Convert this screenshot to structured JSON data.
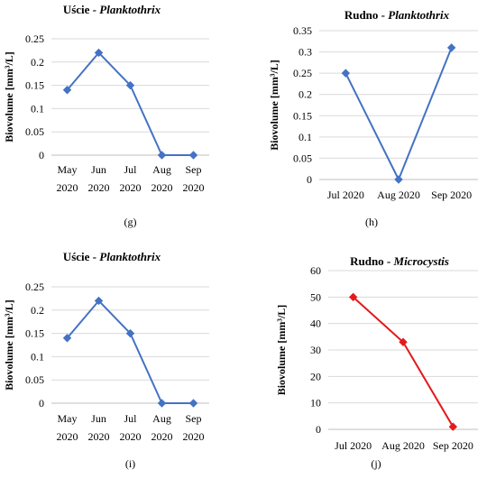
{
  "chart_data": [
    {
      "panel": "g",
      "type": "line",
      "title_site": "Uście",
      "title_sep": " - ",
      "title_genus": "Planktothrix",
      "ylabel": "Biovolume  [mm³/L]",
      "caption": "(g)",
      "categories": [
        [
          "May",
          "2020"
        ],
        [
          "Jun",
          "2020"
        ],
        [
          "Jul",
          "2020"
        ],
        [
          "Aug",
          "2020"
        ],
        [
          "Sep",
          "2020"
        ]
      ],
      "values": [
        0.14,
        0.22,
        0.15,
        0,
        0
      ],
      "yticks": [
        "0",
        "0.05",
        "0.1",
        "0.15",
        "0.2",
        "0.25"
      ],
      "ylim": [
        0,
        0.25
      ],
      "color": "#4472c4",
      "grid": true
    },
    {
      "panel": "h",
      "type": "line",
      "title_site": "Rudno",
      "title_sep": " - ",
      "title_genus": "Planktothrix",
      "ylabel": "Biovolume  [mm³/L]",
      "caption": "(h)",
      "categories": [
        [
          "Jul 2020"
        ],
        [
          "Aug 2020"
        ],
        [
          "Sep 2020"
        ]
      ],
      "values": [
        0.25,
        0,
        0.31
      ],
      "yticks": [
        "0",
        "0.05",
        "0.1",
        "0.15",
        "0.2",
        "0.25",
        "0.3",
        "0.35"
      ],
      "ylim": [
        0,
        0.35
      ],
      "color": "#4472c4",
      "grid": true
    },
    {
      "panel": "i",
      "type": "line",
      "title_site": "Uście",
      "title_sep": " - ",
      "title_genus": "Planktothrix",
      "ylabel": "Biovolume  [mm³/L]",
      "caption": "(i)",
      "categories": [
        [
          "May",
          "2020"
        ],
        [
          "Jun",
          "2020"
        ],
        [
          "Jul",
          "2020"
        ],
        [
          "Aug",
          "2020"
        ],
        [
          "Sep",
          "2020"
        ]
      ],
      "values": [
        0.14,
        0.22,
        0.15,
        0,
        0
      ],
      "yticks": [
        "0",
        "0.05",
        "0.1",
        "0.15",
        "0.2",
        "0.25"
      ],
      "ylim": [
        0,
        0.25
      ],
      "color": "#4472c4",
      "grid": true
    },
    {
      "panel": "j",
      "type": "line",
      "title_site": "Rudno",
      "title_sep": " - ",
      "title_genus": "Microcystis",
      "ylabel": "Biovolume  [mm³/L]",
      "caption": "(j)",
      "categories": [
        [
          "Jul 2020"
        ],
        [
          "Aug 2020"
        ],
        [
          "Sep 2020"
        ]
      ],
      "values": [
        50,
        33,
        1
      ],
      "yticks": [
        "0",
        "10",
        "20",
        "30",
        "40",
        "50",
        "60"
      ],
      "ylim": [
        0,
        60
      ],
      "color": "#e31a1c",
      "grid": true
    }
  ]
}
